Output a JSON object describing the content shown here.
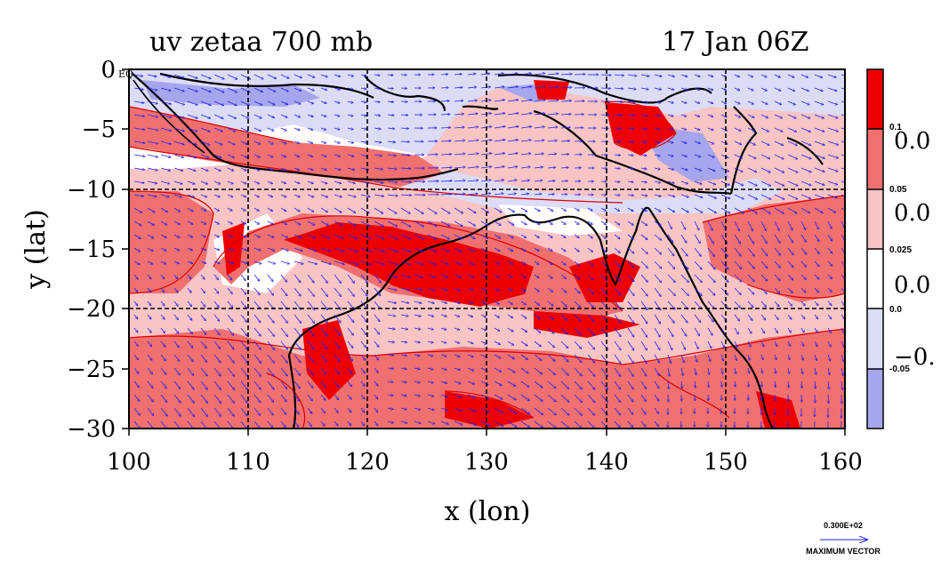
{
  "title_left": "uv zetaa 700 mb",
  "title_right": "17 Jan 06Z",
  "xlabel": "x (lon)",
  "ylabel": "y (lat)",
  "eq_label": "EQ",
  "vector_scale": {
    "value": "0.300E+02",
    "label": "MAXIMUM VECTOR"
  },
  "colors": {
    "strong_pos": "#ee0000",
    "mid_pos": "#f07070",
    "light_pos": "#f8c4c4",
    "zero": "#ffffff",
    "light_neg": "#dcdcf6",
    "strong_neg": "#a6a6ee",
    "contour": "#dd0000",
    "vector": "#2222ee",
    "coast": "#000000"
  },
  "chart_data": {
    "type": "heatmap",
    "x_ticks": [
      "100",
      "110",
      "120",
      "130",
      "140",
      "150",
      "160"
    ],
    "y_ticks": [
      "0",
      "−5",
      "−10",
      "−15",
      "−20",
      "−25",
      "−30"
    ],
    "xlim": [
      100,
      160
    ],
    "ylim": [
      -30,
      0
    ],
    "grid": true,
    "colorbar": {
      "levels_small": [
        "0.1",
        "0.05",
        "0.025",
        "0.0",
        "-0.05"
      ],
      "levels_large": [
        "0.0",
        "0.0",
        "0.0",
        "−0."
      ]
    }
  }
}
